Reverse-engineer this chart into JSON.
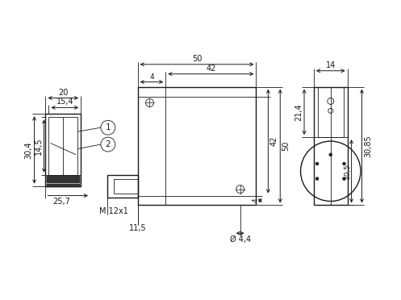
{
  "bg_color": "#ffffff",
  "lc": "#1a1a1a",
  "lw": 1.0,
  "tlw": 0.6,
  "fig_width": 4.97,
  "fig_height": 3.72,
  "xlim": [
    0,
    497
  ],
  "ylim": [
    0,
    372
  ]
}
